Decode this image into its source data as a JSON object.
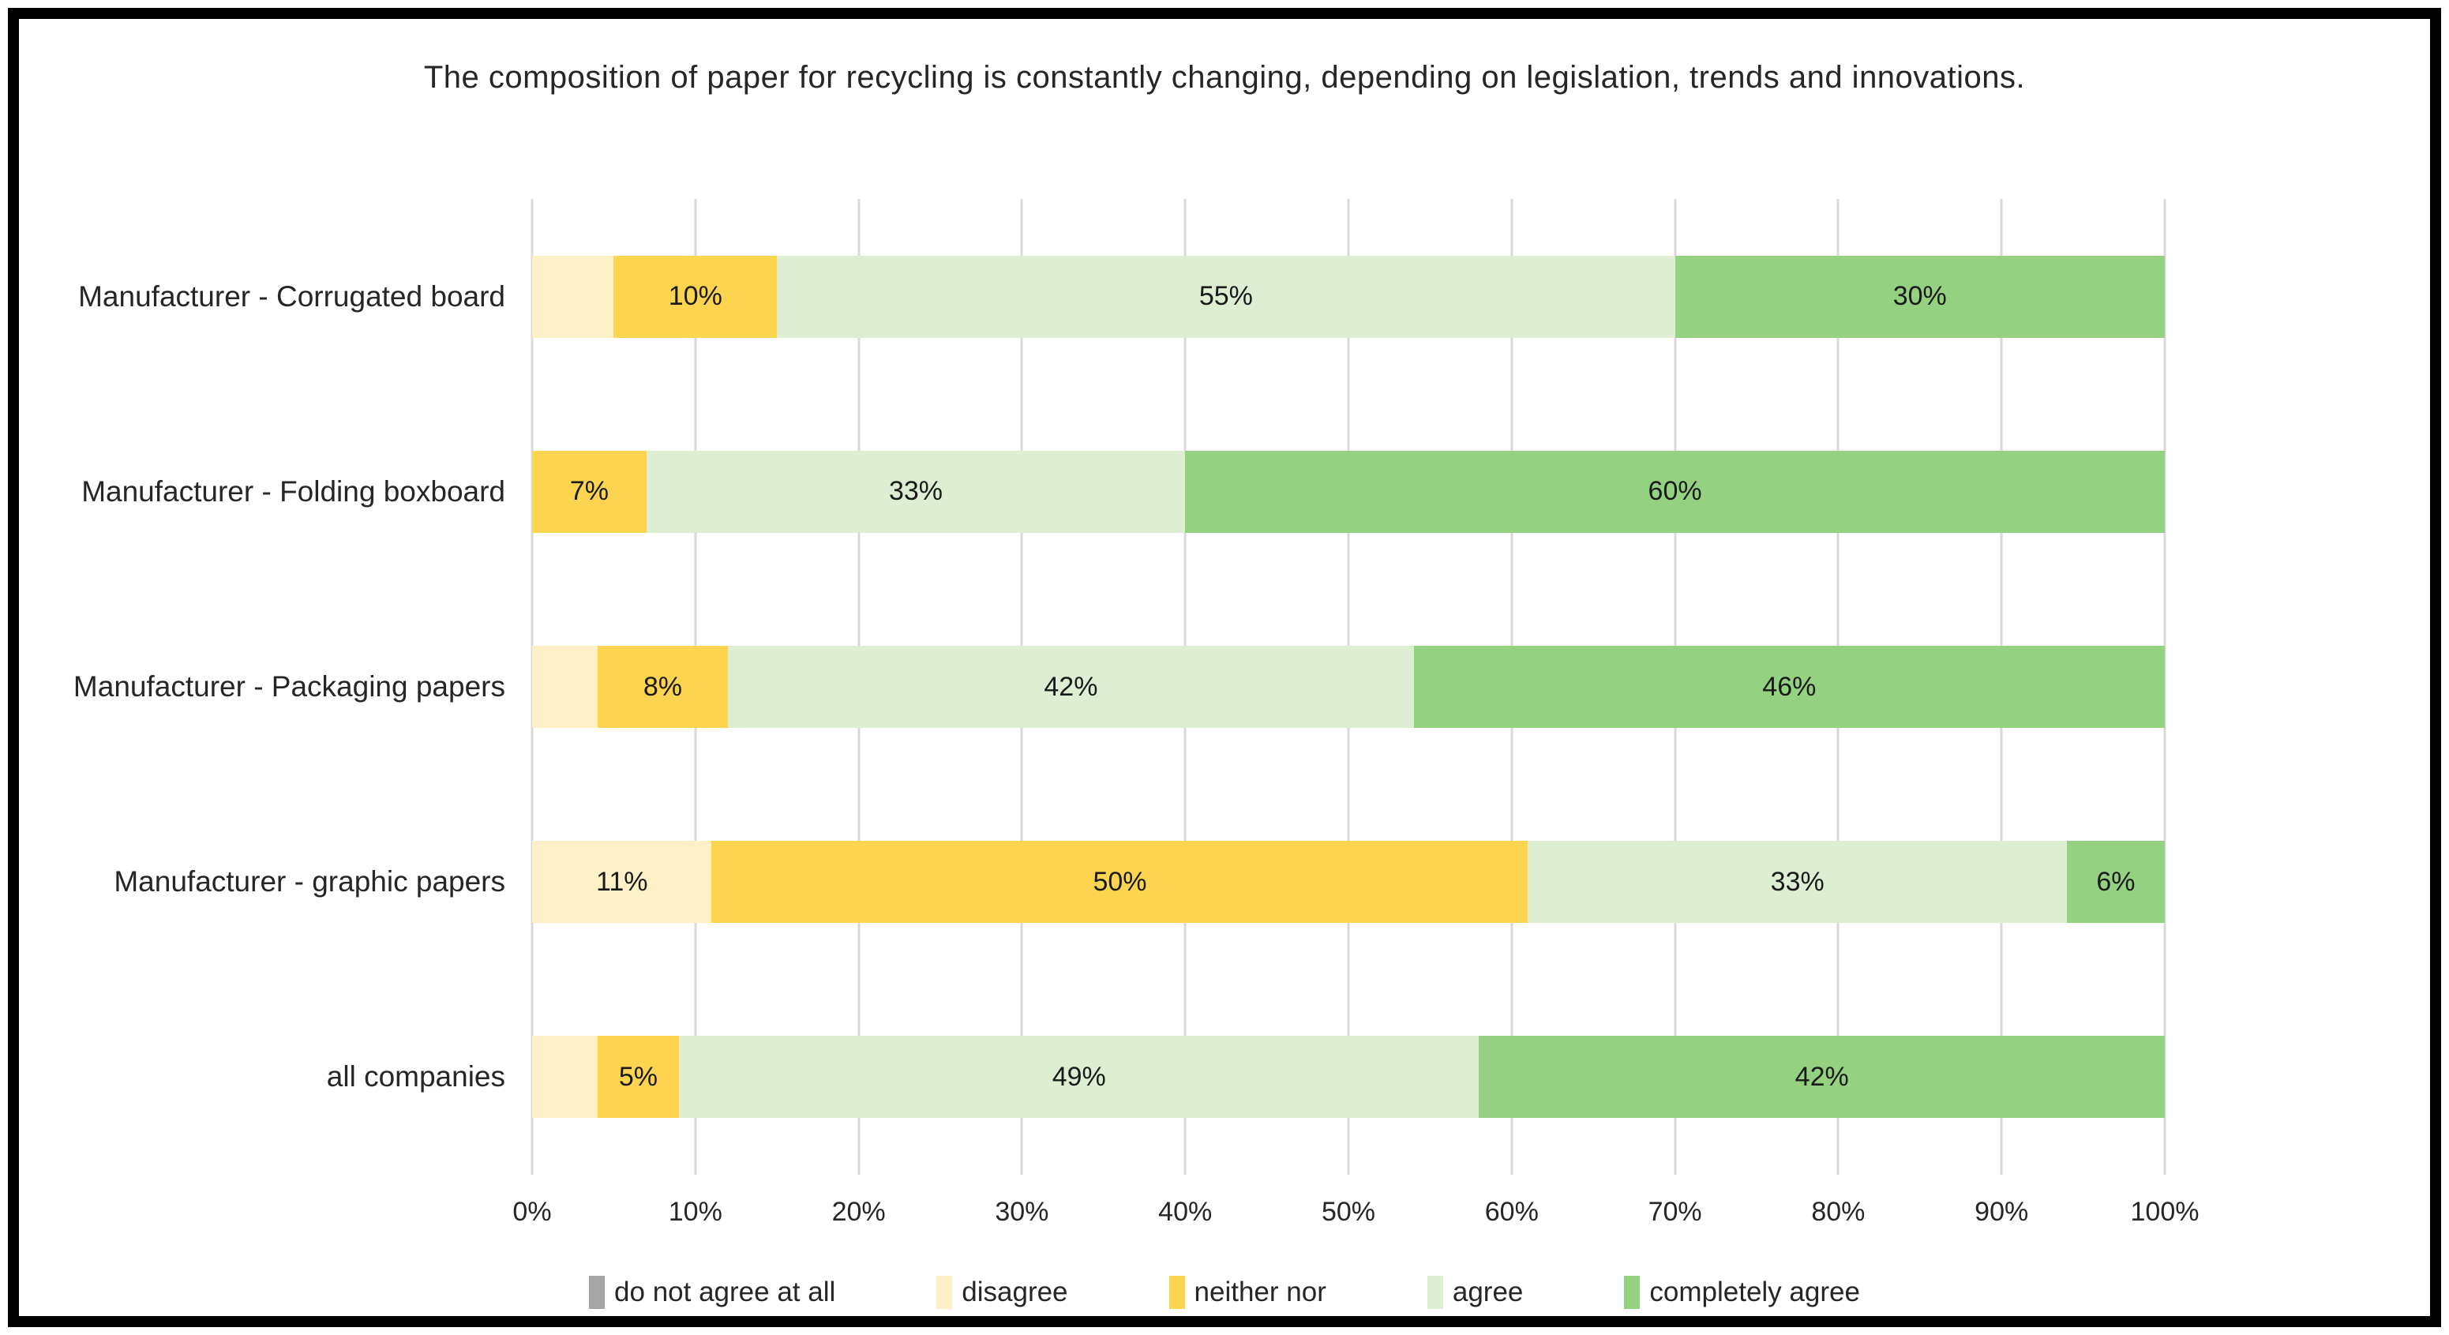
{
  "title": "The composition of paper for recycling is constantly changing, depending on legislation, trends and innovations.",
  "colors": {
    "border": "#000000",
    "gridline": "#d9d9d9",
    "text": "#262626",
    "do_not_agree_at_all": "#a6a6a6",
    "disagree": "#fdf0c7",
    "neither_nor": "#fdd450",
    "agree": "#ddeed3",
    "completely_agree": "#94d282"
  },
  "chart_data": {
    "type": "bar",
    "orientation": "horizontal",
    "stacked": true,
    "title": "The composition of paper for recycling is constantly changing, depending on legislation, trends and innovations.",
    "xlabel": "",
    "ylabel": "",
    "xlim": [
      0,
      100
    ],
    "grid": "vertical",
    "legend_position": "bottom",
    "x_ticks": [
      "0%",
      "10%",
      "20%",
      "30%",
      "40%",
      "50%",
      "60%",
      "70%",
      "80%",
      "90%",
      "100%"
    ],
    "categories": [
      "Manufacturer - Corrugated board",
      "Manufacturer - Folding boxboard",
      "Manufacturer - Packaging papers",
      "Manufacturer - graphic papers",
      "all companies"
    ],
    "series": [
      {
        "name": "do not agree at all",
        "color": "#a6a6a6",
        "values": [
          0,
          0,
          0,
          0,
          0
        ],
        "data_labels": [
          "",
          "",
          "",
          "",
          ""
        ]
      },
      {
        "name": "disagree",
        "color": "#fdf0c7",
        "values": [
          5,
          0,
          4,
          11,
          4
        ],
        "data_labels": [
          "",
          "",
          "",
          "11%",
          ""
        ]
      },
      {
        "name": "neither nor",
        "color": "#fdd450",
        "values": [
          10,
          7,
          8,
          50,
          5
        ],
        "data_labels": [
          "10%",
          "7%",
          "8%",
          "50%",
          "5%"
        ]
      },
      {
        "name": "agree",
        "color": "#ddeed3",
        "values": [
          55,
          33,
          42,
          33,
          49
        ],
        "data_labels": [
          "55%",
          "33%",
          "42%",
          "33%",
          "49%"
        ]
      },
      {
        "name": "completely agree",
        "color": "#94d282",
        "values": [
          30,
          60,
          46,
          6,
          42
        ],
        "data_labels": [
          "30%",
          "60%",
          "46%",
          "6%",
          "42%"
        ]
      }
    ]
  }
}
